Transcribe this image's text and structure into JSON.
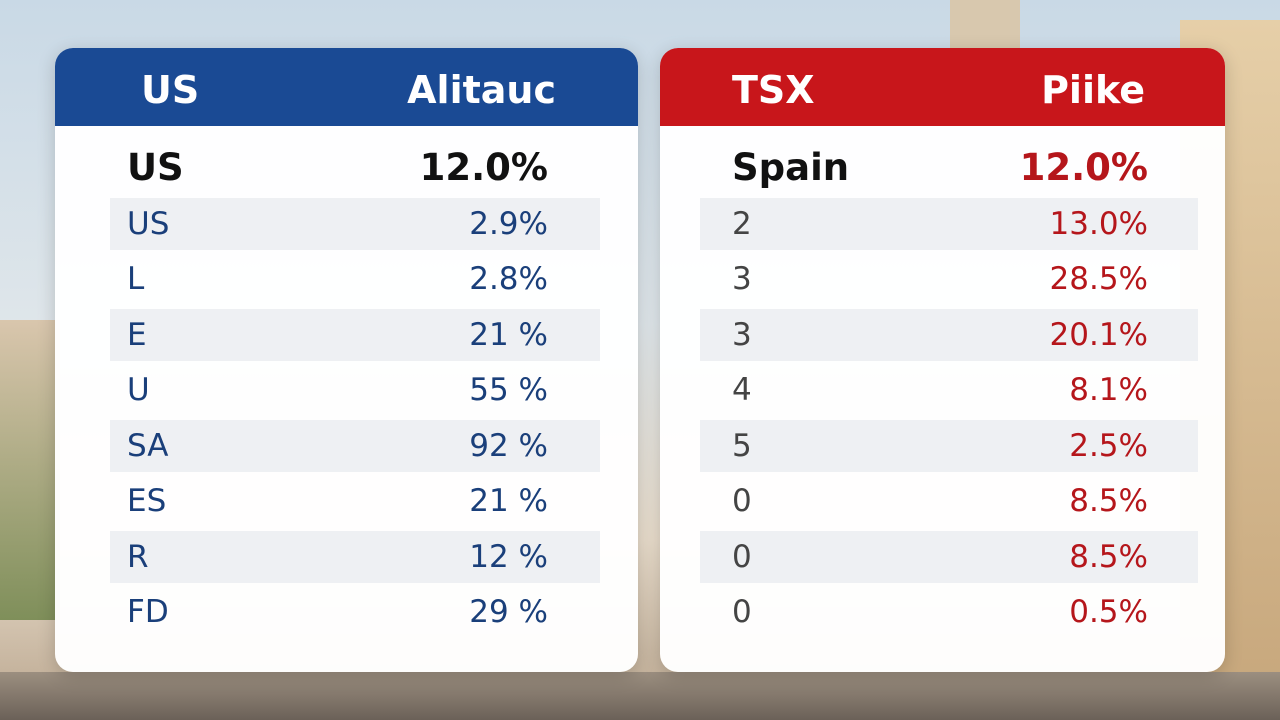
{
  "left": {
    "header": [
      "US",
      "Alitauc"
    ],
    "rows": [
      [
        "US",
        "12.0%"
      ],
      [
        "US",
        "2.9%"
      ],
      [
        "L",
        "2.8%"
      ],
      [
        "E",
        "21 %"
      ],
      [
        "U",
        "55 %"
      ],
      [
        "SA",
        "92 %"
      ],
      [
        "ES",
        "21 %"
      ],
      [
        "R",
        "12 %"
      ],
      [
        "FD",
        "29 %"
      ]
    ]
  },
  "right": {
    "header": [
      "TSX",
      "Piike"
    ],
    "rows": [
      [
        "Spain",
        "12.0%"
      ],
      [
        "2",
        "13.0%"
      ],
      [
        "3",
        "28.5%"
      ],
      [
        "3",
        "20.1%"
      ],
      [
        "4",
        "8.1%"
      ],
      [
        "5",
        "2.5%"
      ],
      [
        "0",
        "8.5%"
      ],
      [
        "0",
        "8.5%"
      ],
      [
        "0",
        "0.5%"
      ]
    ]
  }
}
